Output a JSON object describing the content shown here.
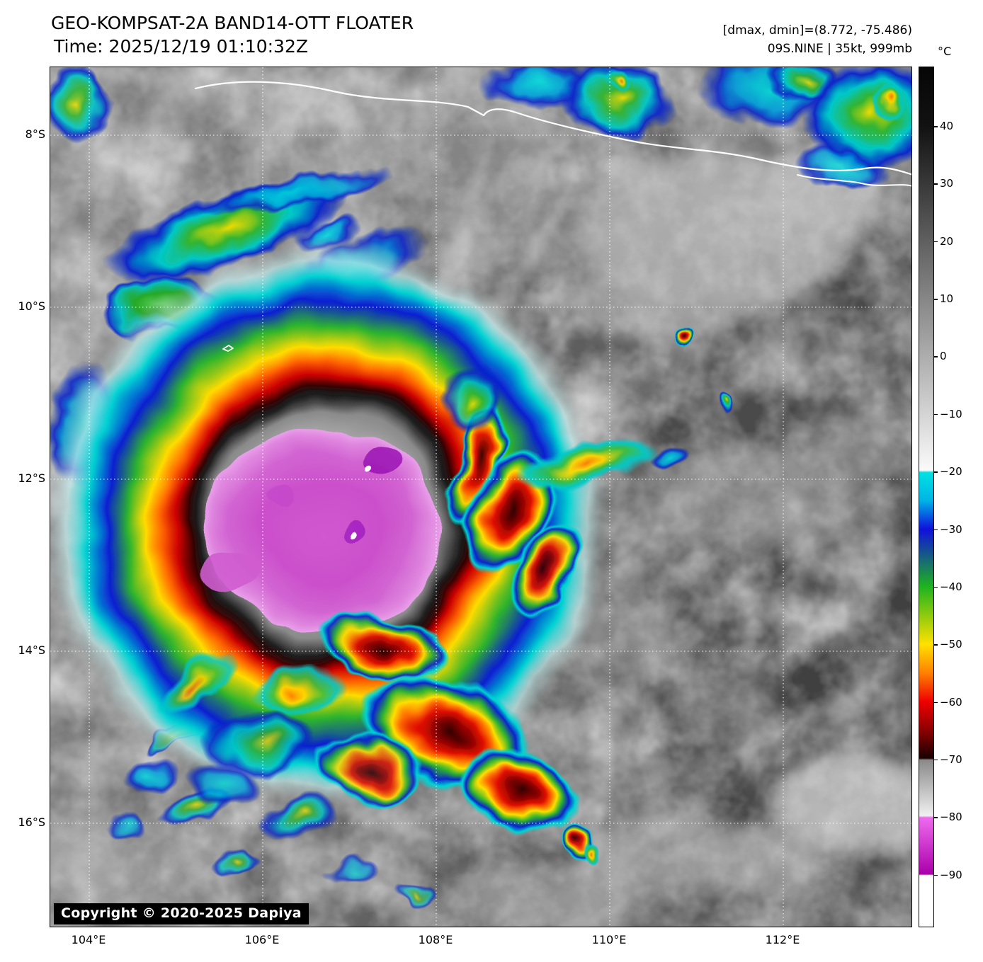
{
  "header": {
    "title": "GEO-KOMPSAT-2A BAND14-OTT FLOATER",
    "time_line": "Time: 2025/12/19 01:10:32Z",
    "dminmax_line": "[dmax, dmin]=(8.772, -75.486)",
    "storm_line": "09S.NINE | 35kt, 999mb"
  },
  "colorbar": {
    "unit": "°C",
    "ticks": [
      "40",
      "30",
      "20",
      "10",
      "0",
      "−10",
      "−20",
      "−30",
      "−40",
      "−50",
      "−60",
      "−70",
      "−80",
      "−90"
    ]
  },
  "axes": {
    "lat_labels": [
      "8°S",
      "10°S",
      "12°S",
      "14°S",
      "16°S"
    ],
    "lon_labels": [
      "104°E",
      "106°E",
      "108°E",
      "110°E",
      "112°E"
    ]
  },
  "copyright": "Copyright © 2020-2025 Dapiya",
  "colors": {
    "grid": "#ffffff",
    "coastline": "#ffffff",
    "badge_bg": "#000000",
    "badge_fg": "#ffffff",
    "cdo_magenta": "#cb4fcb"
  }
}
